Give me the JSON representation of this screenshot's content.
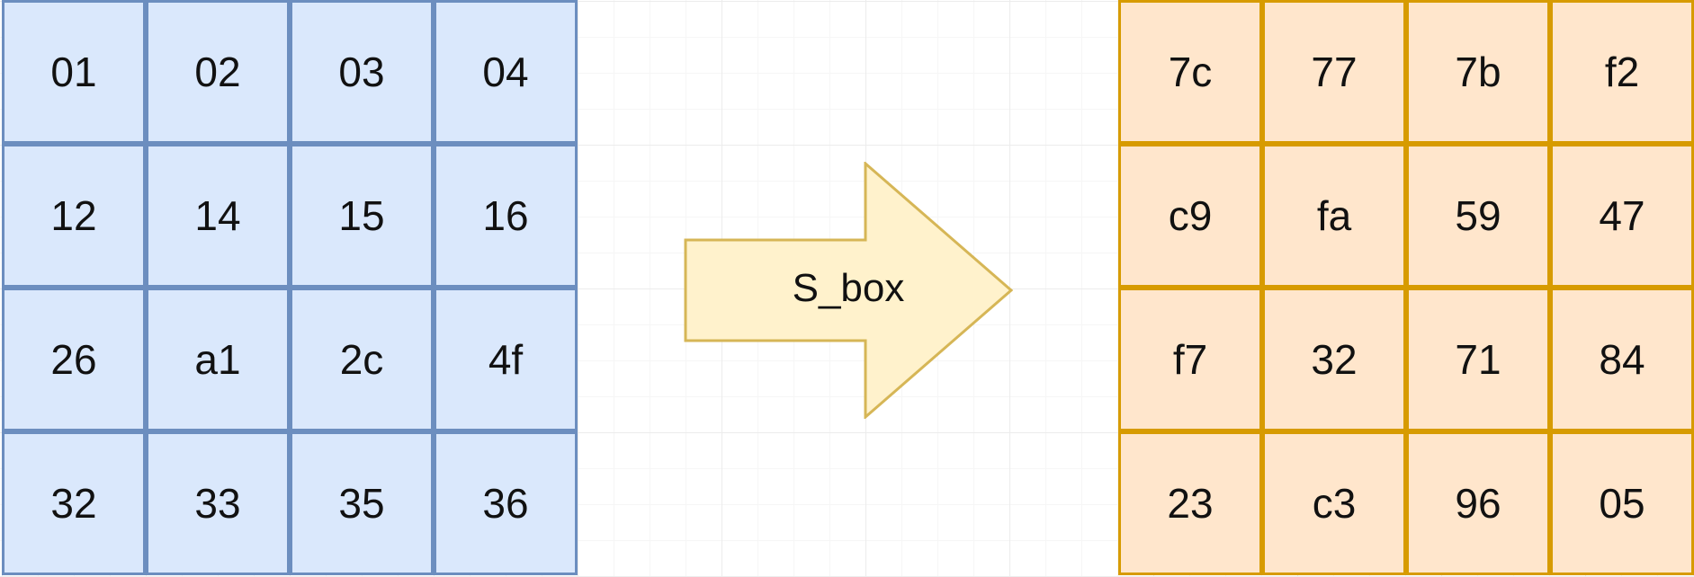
{
  "input_matrix": {
    "fill_color": "#dae8fc",
    "stroke_color": "#6c8ebf",
    "cells": [
      [
        "01",
        "02",
        "03",
        "04"
      ],
      [
        "12",
        "14",
        "15",
        "16"
      ],
      [
        "26",
        "a1",
        "2c",
        "4f"
      ],
      [
        "32",
        "33",
        "35",
        "36"
      ]
    ]
  },
  "arrow": {
    "label": "S_box",
    "fill_color": "#fff2cc",
    "stroke_color": "#d6b656"
  },
  "output_matrix": {
    "fill_color": "#ffe6cc",
    "stroke_color": "#d79b00",
    "cells": [
      [
        "7c",
        "77",
        "7b",
        "f2"
      ],
      [
        "c9",
        "fa",
        "59",
        "47"
      ],
      [
        "f7",
        "32",
        "71",
        "84"
      ],
      [
        "23",
        "c3",
        "96",
        "05"
      ]
    ]
  }
}
